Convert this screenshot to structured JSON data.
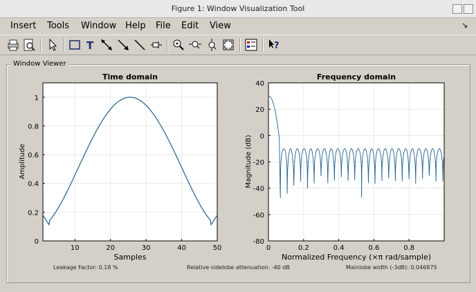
{
  "window": {
    "title": "Figure 1: Window Visualization Tool"
  },
  "menu": [
    "Insert",
    "Tools",
    "Window",
    "Help",
    "File",
    "Edit",
    "View"
  ],
  "panel": {
    "title": "Window Viewer"
  },
  "status": {
    "leakage": "Leakage Factor: 0.18 %",
    "sidelobe": "Relative sidelobe attenuation: -40 dB",
    "mainlobe": "Mainlobe width (-3dB): 0.046875"
  },
  "colors": {
    "line": "#1f5f8f",
    "grid": "#b8b8b8"
  },
  "chart_data": [
    {
      "type": "line",
      "title": "Time domain",
      "xlabel": "Samples",
      "ylabel": "Amplitude",
      "xlim": [
        1,
        50
      ],
      "ylim": [
        0,
        1.1
      ],
      "xticks": [
        10,
        20,
        30,
        40,
        50
      ],
      "yticks": [
        0,
        0.2,
        0.4,
        0.6,
        0.8,
        1
      ],
      "ytick_labels": [
        "0",
        "0.2",
        "0.4",
        "0.6",
        "0.8",
        "1"
      ],
      "grid": true,
      "series": [
        {
          "x_range": [
            1,
            50
          ],
          "shape": "chebyshev",
          "start": 0.18,
          "dip": 0.11,
          "peak": 1.0
        }
      ]
    },
    {
      "type": "line",
      "title": "Frequency domain",
      "xlabel": "Normalized Frequency  (×π rad/sample)",
      "ylabel": "Magnitude (dB)",
      "xlim": [
        0,
        1
      ],
      "ylim": [
        -80,
        40
      ],
      "xticks": [
        0,
        0.2,
        0.4,
        0.6,
        0.8
      ],
      "yticks": [
        -80,
        -60,
        -40,
        -20,
        0,
        20,
        40
      ],
      "grid": true,
      "series": [
        {
          "mainlobe_peak_db": 30,
          "sidelobe_level_db": -10
        }
      ]
    }
  ]
}
